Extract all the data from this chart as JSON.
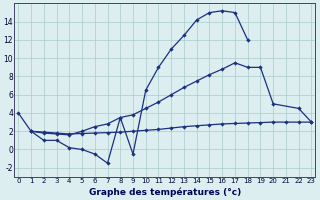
{
  "title": "Graphe des températures (°c)",
  "background_color": "#ddeef0",
  "grid_color": "#aacccc",
  "line_color": "#1a3080",
  "line1_x": [
    0,
    1,
    2,
    3,
    4,
    5,
    6,
    7,
    8,
    9,
    10,
    11,
    12,
    13,
    14,
    15,
    16,
    17,
    18
  ],
  "line1_y": [
    4,
    2,
    1,
    1,
    0.2,
    0.0,
    -0.5,
    -1.5,
    3.5,
    -0.5,
    6.5,
    9,
    11,
    12.5,
    14.2,
    15,
    15.2,
    15,
    12
  ],
  "line2_x": [
    1,
    2,
    3,
    4,
    5,
    6,
    7,
    8,
    9,
    10,
    11,
    12,
    13,
    14,
    15,
    16,
    17,
    18,
    19,
    20,
    22,
    23
  ],
  "line2_y": [
    2,
    1.8,
    1.7,
    1.6,
    2.0,
    2.5,
    2.8,
    3.5,
    3.8,
    4.5,
    5.2,
    6.0,
    6.8,
    7.5,
    8.2,
    8.8,
    9.5,
    9.0,
    9.0,
    5.0,
    4.5,
    3.0
  ],
  "line3_x": [
    1,
    2,
    3,
    4,
    5,
    6,
    7,
    8,
    9,
    10,
    11,
    12,
    13,
    14,
    15,
    16,
    17,
    18,
    19,
    20,
    21,
    22,
    23
  ],
  "line3_y": [
    2,
    1.9,
    1.8,
    1.7,
    1.75,
    1.8,
    1.85,
    1.9,
    2.0,
    2.1,
    2.2,
    2.35,
    2.5,
    2.6,
    2.7,
    2.8,
    2.85,
    2.9,
    2.95,
    3.0,
    3.0,
    3.0,
    3.0
  ],
  "xlim": [
    -0.3,
    23.3
  ],
  "ylim": [
    -3.0,
    16.0
  ],
  "yticks": [
    -2,
    0,
    2,
    4,
    6,
    8,
    10,
    12,
    14
  ],
  "xticks": [
    0,
    1,
    2,
    3,
    4,
    5,
    6,
    7,
    8,
    9,
    10,
    11,
    12,
    13,
    14,
    15,
    16,
    17,
    18,
    19,
    20,
    21,
    22,
    23
  ]
}
